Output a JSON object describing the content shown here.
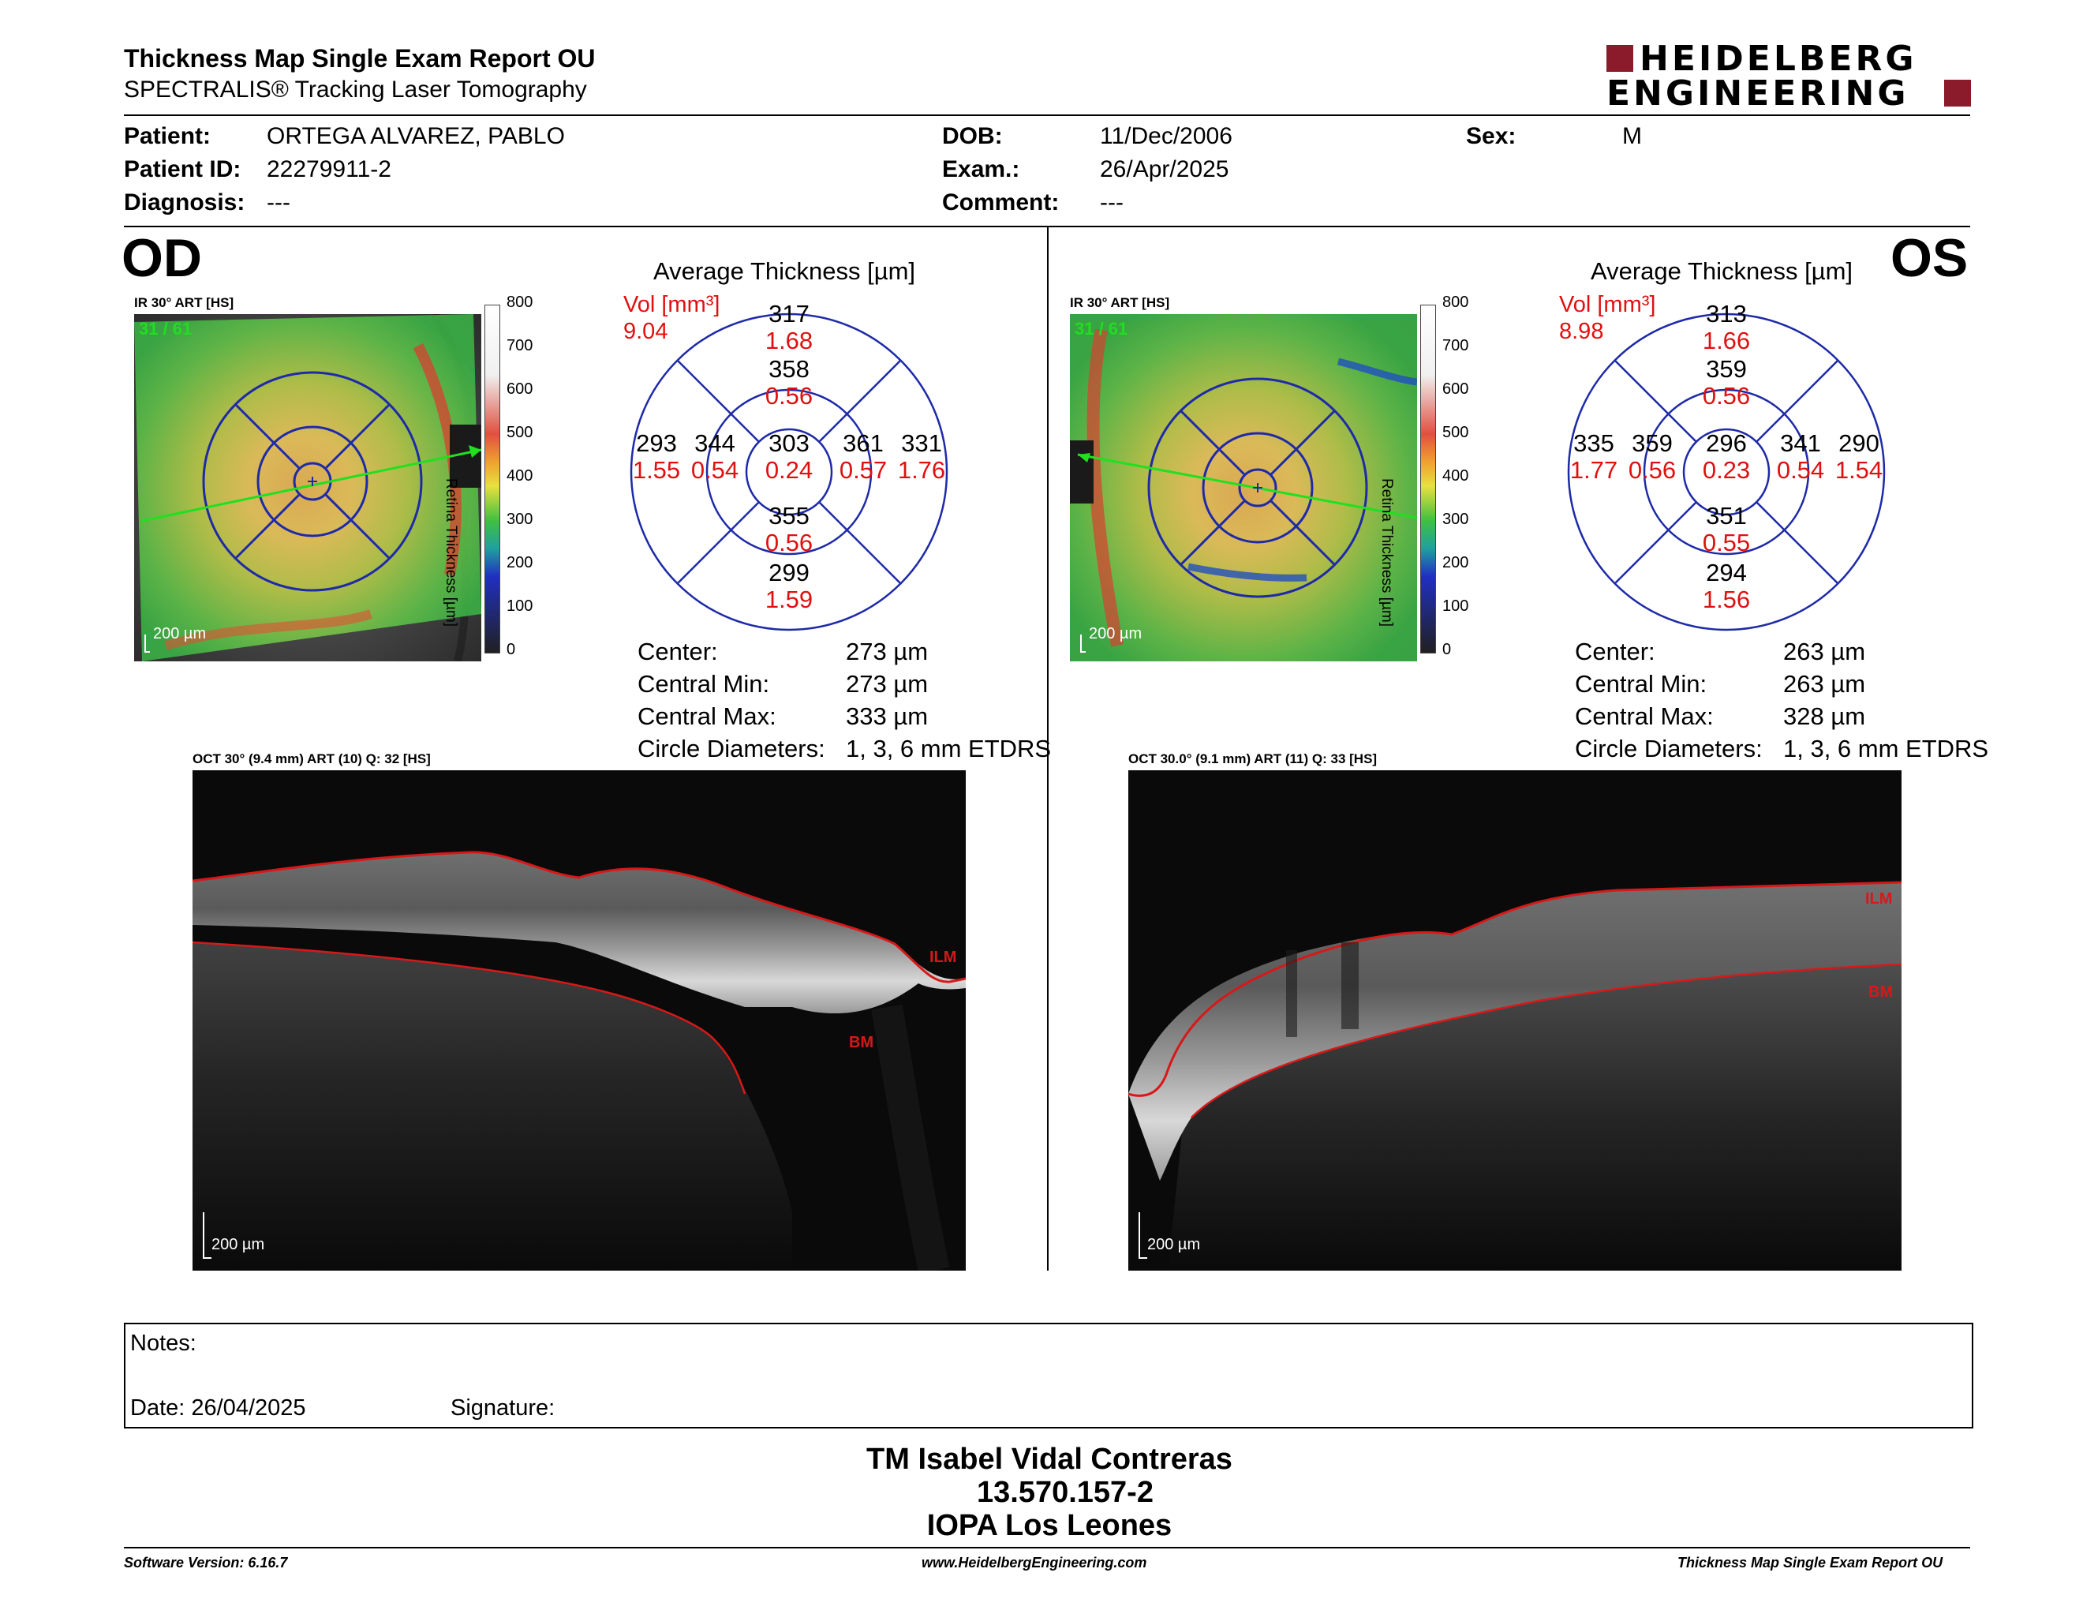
{
  "header": {
    "title": "Thickness Map Single Exam Report OU",
    "subtitle": "SPECTRALIS® Tracking Laser Tomography",
    "brand_line1": "HEIDELBERG",
    "brand_line2": "ENGINEERING",
    "brand_color": "#8b1a2b"
  },
  "patient": {
    "patient_label": "Patient:",
    "patient_value": "ORTEGA ALVAREZ, PABLO",
    "id_label": "Patient ID:",
    "id_value": "22279911-2",
    "diagnosis_label": "Diagnosis:",
    "diagnosis_value": "---",
    "dob_label": "DOB:",
    "dob_value": "11/Dec/2006",
    "exam_label": "Exam.:",
    "exam_value": "26/Apr/2025",
    "comment_label": "Comment:",
    "comment_value": "---",
    "sex_label": "Sex:",
    "sex_value": "M"
  },
  "od": {
    "eye": "OD",
    "ir_label": "IR 30° ART [HS]",
    "frames": "31 / 61",
    "scale_label": "200 µm",
    "colorbar_ticks": [
      "800",
      "700",
      "600",
      "500",
      "400",
      "300",
      "200",
      "100",
      "0"
    ],
    "colorbar_title": "Retina Thickness [µm]",
    "avg_title": "Average Thickness [µm]",
    "vol_label": "Vol [mm³]",
    "vol_value": "9.04",
    "etdrs": {
      "outer_sup": "317",
      "outer_sup_vol": "1.68",
      "inner_sup": "358",
      "inner_sup_vol": "0.56",
      "outer_temp": "293",
      "outer_temp_vol": "1.55",
      "inner_temp": "344",
      "inner_temp_vol": "0.54",
      "center": "303",
      "center_vol": "0.24",
      "inner_nas": "361",
      "inner_nas_vol": "0.57",
      "outer_nas": "331",
      "outer_nas_vol": "1.76",
      "inner_inf": "355",
      "inner_inf_vol": "0.56",
      "outer_inf": "299",
      "outer_inf_vol": "1.59"
    },
    "stats": {
      "center_label": "Center:",
      "center_value": "273 µm",
      "cmin_label": "Central Min:",
      "cmin_value": "273 µm",
      "cmax_label": "Central Max:",
      "cmax_value": "333 µm",
      "diam_label": "Circle Diameters:",
      "diam_value": "1, 3, 6 mm ETDRS"
    },
    "oct_label": "OCT 30° (9.4 mm) ART (10) Q: 32 [HS]",
    "oct_scale": "200 µm",
    "ilm_label": "ILM",
    "bm_label": "BM"
  },
  "os": {
    "eye": "OS",
    "ir_label": "IR 30° ART [HS]",
    "frames": "31 / 61",
    "scale_label": "200 µm",
    "colorbar_ticks": [
      "800",
      "700",
      "600",
      "500",
      "400",
      "300",
      "200",
      "100",
      "0"
    ],
    "colorbar_title": "Retina Thickness [µm]",
    "avg_title": "Average Thickness [µm]",
    "vol_label": "Vol [mm³]",
    "vol_value": "8.98",
    "etdrs": {
      "outer_sup": "313",
      "outer_sup_vol": "1.66",
      "inner_sup": "359",
      "inner_sup_vol": "0.56",
      "outer_temp": "335",
      "outer_temp_vol": "1.77",
      "inner_temp": "359",
      "inner_temp_vol": "0.56",
      "center": "296",
      "center_vol": "0.23",
      "inner_nas": "341",
      "inner_nas_vol": "0.54",
      "outer_nas": "290",
      "outer_nas_vol": "1.54",
      "inner_inf": "351",
      "inner_inf_vol": "0.55",
      "outer_inf": "294",
      "outer_inf_vol": "1.56"
    },
    "stats": {
      "center_label": "Center:",
      "center_value": "263 µm",
      "cmin_label": "Central Min:",
      "cmin_value": "263 µm",
      "cmax_label": "Central Max:",
      "cmax_value": "328 µm",
      "diam_label": "Circle Diameters:",
      "diam_value": "1, 3, 6 mm ETDRS"
    },
    "oct_label": "OCT 30.0° (9.1 mm) ART (11) Q: 33 [HS]",
    "oct_scale": "200 µm",
    "ilm_label": "ILM",
    "bm_label": "BM"
  },
  "notes": {
    "notes_label": "Notes:",
    "date_label": "Date: 26/04/2025",
    "signature_label": "Signature:"
  },
  "signer": {
    "name": "TM Isabel Vidal Contreras",
    "rut": "13.570.157-2",
    "institution": "IOPA Los Leones"
  },
  "footer": {
    "software": "Software Version: 6.16.7",
    "website": "www.HeidelbergEngineering.com",
    "report": "Thickness Map Single Exam Report OU"
  }
}
